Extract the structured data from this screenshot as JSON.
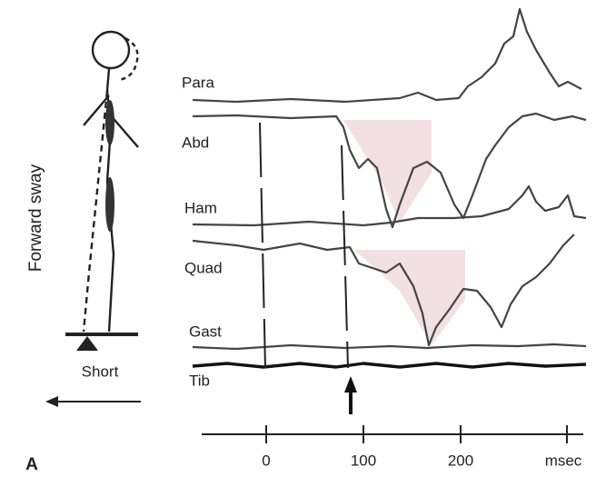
{
  "figure_label": "A",
  "figure": {
    "sway_label": "Forward sway",
    "surface_label": "Short"
  },
  "traces": [
    {
      "label": "Para"
    },
    {
      "label": "Abd"
    },
    {
      "label": "Ham"
    },
    {
      "label": "Quad"
    },
    {
      "label": "Gast"
    },
    {
      "label": "Tib"
    }
  ],
  "time_axis": {
    "ticks": [
      0,
      100,
      200
    ],
    "unit": "msec"
  }
}
